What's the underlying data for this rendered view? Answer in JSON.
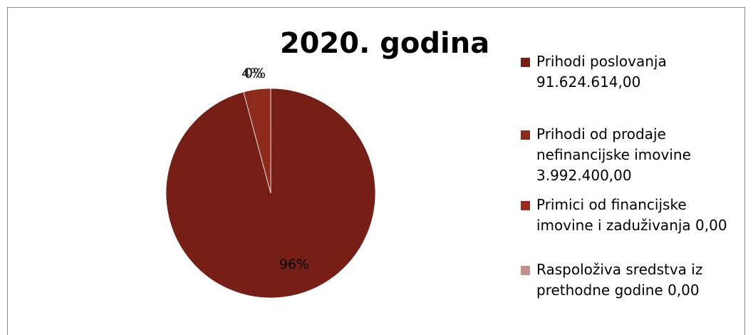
{
  "chart_data": {
    "type": "pie",
    "title": "2020. godina",
    "legend_position": "right",
    "slices": [
      {
        "label": "Prihodi poslovanja",
        "amount_text": "91.624.614,00",
        "value": 91624614.0,
        "percent_label": "96%",
        "color": "#771f17"
      },
      {
        "label": "Prihodi od prodaje nefinancijske imovine",
        "amount_text": "3.992.400,00",
        "value": 3992400.0,
        "percent_label": "4%",
        "color": "#8e2a1c"
      },
      {
        "label": "Primici od financijske imovine i zaduživanja",
        "amount_text": "0,00",
        "value": 0,
        "percent_label": "0%",
        "color": "#9b2b1f"
      },
      {
        "label": "Raspoloživa sredstva iz prethodne godine",
        "amount_text": "0,00",
        "value": 0,
        "percent_label": "0%",
        "color": "#c48f8b"
      }
    ]
  },
  "legend": {
    "items": [
      {
        "lines": [
          "Prihodi poslovanja",
          "91.624.614,00"
        ]
      },
      {
        "lines": [
          "Prihodi od prodaje",
          "nefinancijske imovine",
          "3.992.400,00"
        ]
      },
      {
        "lines": [
          "Primici od financijske",
          "imovine i zaduživanja 0,00"
        ]
      },
      {
        "lines": [
          "Raspoloživa sredstva iz",
          "prethodne godine 0,00"
        ]
      }
    ]
  }
}
